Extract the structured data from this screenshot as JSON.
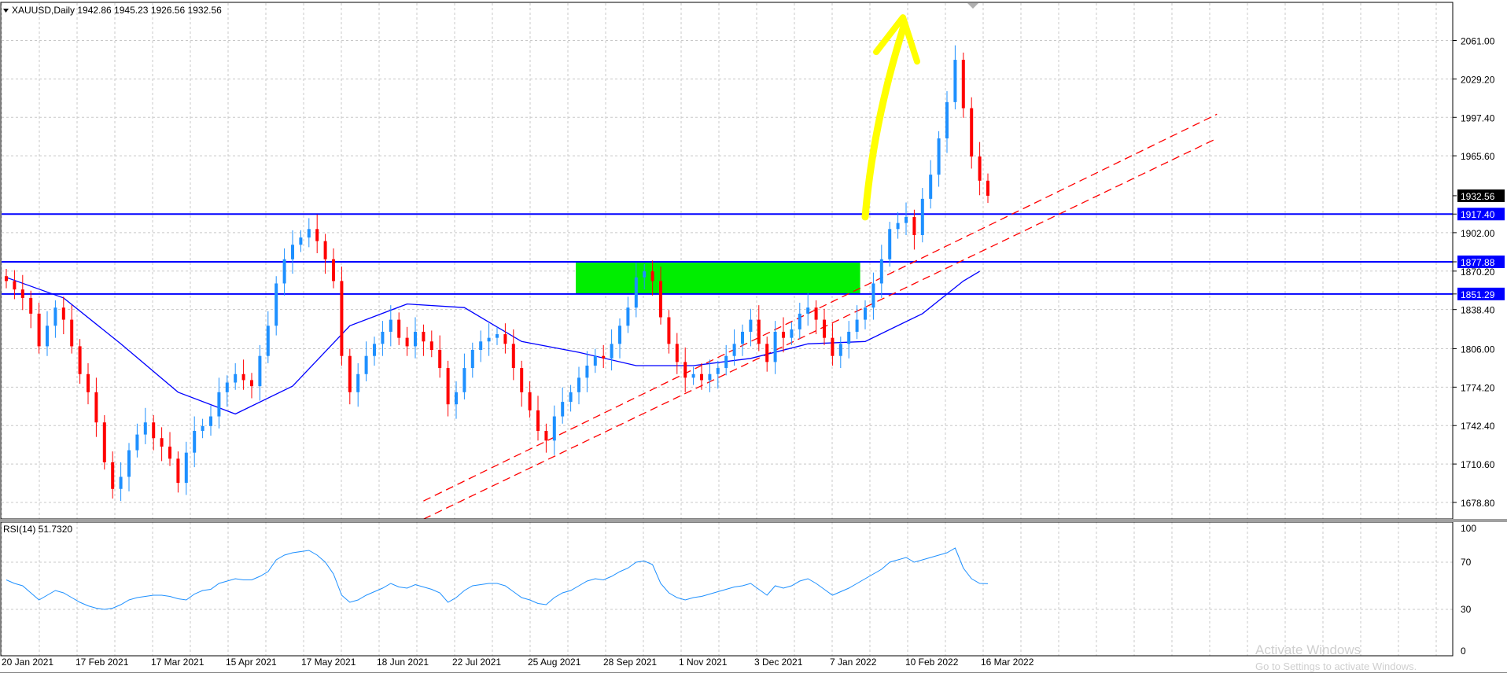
{
  "header": {
    "symbol_line": "XAUUSD,Daily  1942.86 1945.23 1926.56 1932.56"
  },
  "rsi_panel": {
    "label": "RSI(14) 51.7320"
  },
  "watermark": {
    "line1": "Activate Windows",
    "line2": "Go to Settings to activate Windows."
  },
  "chart_data": [
    {
      "type": "candlestick",
      "title": "XAUUSD,Daily",
      "ohlc_last": {
        "open": 1942.86,
        "high": 1945.23,
        "low": 1926.56,
        "close": 1932.56
      },
      "current_price": 1932.56,
      "price_range": [
        1662,
        2084
      ],
      "price_ticks": [
        "2061.00",
        "2029.20",
        "1997.40",
        "1965.60",
        "1932.56",
        "1917.40",
        "1902.00",
        "1877.88",
        "1870.20",
        "1851.29",
        "1838.40",
        "1806.00",
        "1774.20",
        "1742.40",
        "1710.60",
        "1678.80"
      ],
      "date_ticks": [
        "20 Jan 2021",
        "17 Feb 2021",
        "17 Mar 2021",
        "15 Apr 2021",
        "17 May 2021",
        "18 Jun 2021",
        "22 Jul 2021",
        "25 Aug 2021",
        "28 Sep 2021",
        "1 Nov 2021",
        "3 Dec 2021",
        "7 Jan 2022",
        "10 Feb 2022",
        "16 Mar 2022"
      ],
      "close_series": [
        1862,
        1855,
        1848,
        1835,
        1808,
        1825,
        1840,
        1830,
        1808,
        1785,
        1770,
        1745,
        1712,
        1690,
        1700,
        1722,
        1735,
        1745,
        1732,
        1725,
        1715,
        1695,
        1720,
        1738,
        1742,
        1750,
        1770,
        1778,
        1785,
        1780,
        1775,
        1800,
        1825,
        1860,
        1880,
        1892,
        1898,
        1905,
        1895,
        1880,
        1862,
        1800,
        1770,
        1785,
        1800,
        1810,
        1820,
        1830,
        1815,
        1808,
        1820,
        1812,
        1805,
        1790,
        1760,
        1770,
        1790,
        1805,
        1812,
        1815,
        1818,
        1810,
        1790,
        1770,
        1755,
        1738,
        1730,
        1750,
        1762,
        1770,
        1782,
        1792,
        1800,
        1798,
        1810,
        1825,
        1840,
        1865,
        1870,
        1862,
        1832,
        1810,
        1795,
        1782,
        1785,
        1780,
        1785,
        1790,
        1800,
        1810,
        1820,
        1830,
        1810,
        1795,
        1820,
        1815,
        1822,
        1835,
        1840,
        1830,
        1815,
        1800,
        1810,
        1820,
        1830,
        1840,
        1860,
        1880,
        1905,
        1910,
        1915,
        1900,
        1930,
        1950,
        1980,
        2010,
        2045,
        2005,
        1965,
        1945,
        1932.56
      ],
      "moving_average": {
        "x": [
          0,
          7,
          14,
          21,
          28,
          35,
          42,
          49,
          56,
          63,
          70,
          77,
          84,
          91,
          98,
          105,
          112,
          117,
          119
        ],
        "y": [
          1865,
          1848,
          1810,
          1770,
          1752,
          1775,
          1825,
          1843,
          1840,
          1812,
          1803,
          1792,
          1792,
          1798,
          1810,
          1812,
          1835,
          1862,
          1870
        ]
      },
      "horizontal_levels": [
        {
          "value": 1917.4,
          "label": "1917.40",
          "color": "#0000ff"
        },
        {
          "value": 1877.88,
          "label": "1877.88",
          "color": "#0000ff"
        },
        {
          "value": 1851.29,
          "label": "1851.29",
          "color": "#0000ff"
        }
      ],
      "zone": {
        "from": 1851.29,
        "to": 1877.88,
        "x_start": 70,
        "x_end": 104,
        "color": "#00ee00"
      },
      "trendlines": [
        {
          "x0": 51,
          "y0": 1665,
          "x1": 148,
          "y1": 1980,
          "color": "#ff0000",
          "style": "dashed"
        },
        {
          "x0": 51,
          "y0": 1680,
          "x1": 148,
          "y1": 2000,
          "color": "#ff0000",
          "style": "dashed"
        }
      ],
      "arrow": {
        "color": "#ffff00",
        "x_start": 105,
        "y_start": 1915,
        "x_tip": 110,
        "y_tip": 2084
      },
      "colors": {
        "up": "#1e90ff",
        "down": "#ff0000",
        "ma": "#0000ff",
        "grid": "#c8c8c8"
      }
    },
    {
      "type": "line",
      "title": "RSI(14)",
      "current_value": 51.732,
      "ylim": [
        0,
        100
      ],
      "y_ticks": [
        "100",
        "70",
        "30",
        "0"
      ],
      "values": [
        55,
        52,
        50,
        44,
        38,
        42,
        46,
        44,
        40,
        36,
        33,
        31,
        30,
        31,
        34,
        38,
        40,
        41,
        42,
        42,
        41,
        39,
        38,
        43,
        46,
        47,
        52,
        54,
        56,
        55,
        55,
        58,
        62,
        72,
        76,
        78,
        79,
        80,
        76,
        70,
        60,
        42,
        36,
        38,
        42,
        45,
        48,
        52,
        49,
        48,
        51,
        49,
        47,
        44,
        36,
        40,
        46,
        50,
        51,
        52,
        52,
        50,
        45,
        40,
        38,
        35,
        34,
        40,
        44,
        46,
        50,
        54,
        56,
        55,
        58,
        62,
        65,
        70,
        71,
        68,
        52,
        44,
        40,
        38,
        40,
        41,
        43,
        45,
        47,
        49,
        50,
        52,
        47,
        42,
        50,
        48,
        50,
        54,
        56,
        52,
        47,
        42,
        45,
        48,
        52,
        56,
        60,
        64,
        70,
        72,
        74,
        70,
        72,
        74,
        76,
        78,
        82,
        65,
        56,
        52,
        51.73
      ],
      "colors": {
        "line": "#1e90ff"
      }
    }
  ]
}
